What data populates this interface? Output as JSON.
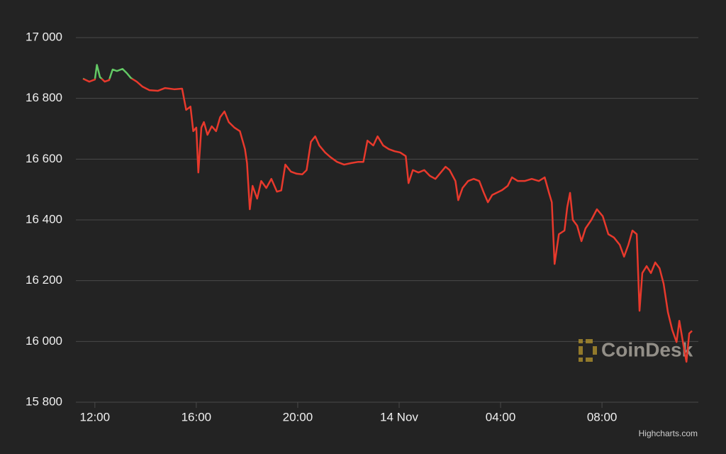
{
  "chart_data": {
    "type": "line",
    "x": [
      11.53,
      11.78,
      12.0,
      12.08,
      12.2,
      12.39,
      12.56,
      12.7,
      12.87,
      13.09,
      13.26,
      13.42,
      13.65,
      13.87,
      14.15,
      14.49,
      14.77,
      15.13,
      15.44,
      15.6,
      15.77,
      15.88,
      16.0,
      16.08,
      16.2,
      16.3,
      16.44,
      16.61,
      16.78,
      16.94,
      17.11,
      17.28,
      17.5,
      17.72,
      17.92,
      18.0,
      18.11,
      18.22,
      18.4,
      18.56,
      18.76,
      18.96,
      19.18,
      19.35,
      19.51,
      19.73,
      19.96,
      20.18,
      20.35,
      20.52,
      20.69,
      20.85,
      21.08,
      21.3,
      21.55,
      21.83,
      22.11,
      22.39,
      22.59,
      22.75,
      22.98,
      23.15,
      23.37,
      23.59,
      23.82,
      24.04,
      24.26,
      24.37,
      24.54,
      24.76,
      24.99,
      25.21,
      25.43,
      25.6,
      25.83,
      25.99,
      26.22,
      26.33,
      26.5,
      26.72,
      26.94,
      27.16,
      27.34,
      27.5,
      27.67,
      27.84,
      28.06,
      28.28,
      28.45,
      28.68,
      28.95,
      29.23,
      29.51,
      29.74,
      29.91,
      30.02,
      30.13,
      30.3,
      30.52,
      30.63,
      30.74,
      30.85,
      31.02,
      31.19,
      31.35,
      31.58,
      31.8,
      32.03,
      32.25,
      32.47,
      32.7,
      32.87,
      33.04,
      33.2,
      33.37,
      33.48,
      33.59,
      33.76,
      33.93,
      34.1,
      34.27,
      34.43,
      34.6,
      34.77,
      34.94,
      35.05,
      35.22,
      35.33,
      35.44,
      35.55
    ],
    "series": [
      {
        "values": [
          16865,
          16855,
          16862,
          16910,
          16870,
          16855,
          16860,
          16895,
          16890,
          16897,
          16883,
          16867,
          16855,
          16839,
          16827,
          16825,
          16834,
          16830,
          16832,
          16762,
          16773,
          16692,
          16704,
          16556,
          16704,
          16722,
          16680,
          16708,
          16692,
          16738,
          16757,
          16722,
          16704,
          16692,
          16633,
          16587,
          16435,
          16512,
          16470,
          16528,
          16505,
          16535,
          16493,
          16497,
          16582,
          16559,
          16552,
          16550,
          16564,
          16657,
          16675,
          16645,
          16622,
          16606,
          16591,
          16582,
          16587,
          16591,
          16591,
          16661,
          16645,
          16675,
          16645,
          16633,
          16626,
          16622,
          16610,
          16521,
          16564,
          16556,
          16564,
          16545,
          16535,
          16552,
          16575,
          16564,
          16528,
          16465,
          16505,
          16528,
          16535,
          16528,
          16489,
          16458,
          16482,
          16489,
          16498,
          16512,
          16540,
          16528,
          16528,
          16535,
          16528,
          16540,
          16489,
          16458,
          16255,
          16353,
          16365,
          16442,
          16489,
          16400,
          16381,
          16330,
          16372,
          16400,
          16435,
          16412,
          16353,
          16342,
          16318,
          16279,
          16318,
          16365,
          16353,
          16101,
          16225,
          16248,
          16225,
          16260,
          16241,
          16190,
          16096,
          16038,
          15998,
          16068,
          15984,
          15933,
          16026,
          16035
        ],
        "color": "#e8392c",
        "threshold": 16865,
        "color_above": "#63c965"
      }
    ],
    "xlim": [
      11.25,
      35.8
    ],
    "xticks": [
      {
        "value": 12,
        "label": "12:00"
      },
      {
        "value": 16,
        "label": "16:00"
      },
      {
        "value": 20,
        "label": "20:00"
      },
      {
        "value": 24,
        "label": "14 Nov"
      },
      {
        "value": 28,
        "label": "04:00"
      },
      {
        "value": 32,
        "label": "08:00"
      }
    ],
    "ylim": [
      15800,
      17000
    ],
    "yticks": [
      {
        "value": 15800,
        "label": "15 800"
      },
      {
        "value": 16000,
        "label": "16 000"
      },
      {
        "value": 16200,
        "label": "16 200"
      },
      {
        "value": 16400,
        "label": "16 400"
      },
      {
        "value": 16600,
        "label": "16 600"
      },
      {
        "value": 16800,
        "label": "16 800"
      },
      {
        "value": 17000,
        "label": "17 000"
      }
    ],
    "grid": true,
    "watermark": "CoinDesk",
    "credit": "Highcharts.com"
  }
}
